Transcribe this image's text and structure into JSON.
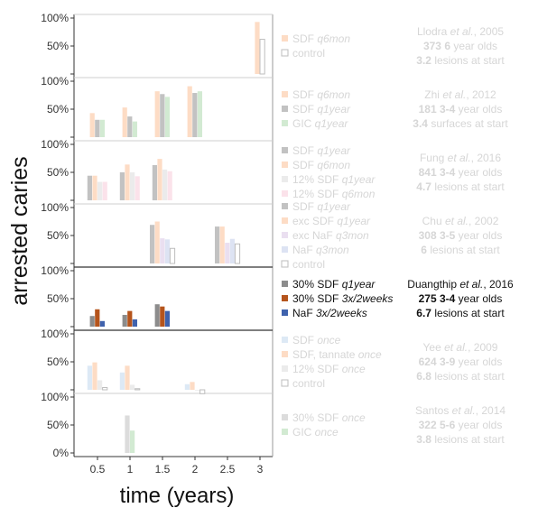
{
  "chart_data": {
    "type": "bar",
    "xlabel": "time (years)",
    "ylabel": "arrested caries",
    "x_ticks": [
      "0.5",
      "1",
      "1.5",
      "2",
      "2.5",
      "3"
    ],
    "y_tick_labels": [
      "0%",
      "50%",
      "100%"
    ],
    "ylim": [
      0,
      100
    ],
    "panels": [
      {
        "study_author": "Llodra",
        "study_year": ", 2005",
        "children_n": "373",
        "children_age": "6",
        "children_suffix": " year olds",
        "lesions_n": "3.2",
        "lesions_suffix": " lesions at start",
        "faded": true,
        "series": [
          {
            "name_main": "SDF",
            "name_freq": "q6mon",
            "color": "#fddcc5",
            "outline": false,
            "values": [
              {
                "x": 3,
                "y": 93
              }
            ]
          },
          {
            "name_main": "control",
            "name_freq": "",
            "color": "#ffffff",
            "outline": true,
            "values": [
              {
                "x": 3,
                "y": 62
              }
            ]
          }
        ]
      },
      {
        "study_author": "Zhi",
        "study_year": ", 2012",
        "children_n": "181",
        "children_age": "3-4",
        "children_suffix": " year olds",
        "lesions_n": "3.4",
        "lesions_suffix": " surfaces at start",
        "faded": true,
        "series": [
          {
            "name_main": "SDF",
            "name_freq": "q6mon",
            "color": "#fddcc5",
            "outline": false,
            "values": [
              {
                "x": 0.5,
                "y": 43
              },
              {
                "x": 1,
                "y": 53
              },
              {
                "x": 1.5,
                "y": 82
              },
              {
                "x": 2,
                "y": 91
              }
            ]
          },
          {
            "name_main": "SDF",
            "name_freq": "q1year",
            "color": "#c2c2c2",
            "outline": false,
            "values": [
              {
                "x": 0.5,
                "y": 31
              },
              {
                "x": 1,
                "y": 37
              },
              {
                "x": 1.5,
                "y": 77
              },
              {
                "x": 2,
                "y": 79
              }
            ]
          },
          {
            "name_main": "GIC",
            "name_freq": "q1year",
            "color": "#d2ead2",
            "outline": false,
            "values": [
              {
                "x": 0.5,
                "y": 31
              },
              {
                "x": 1,
                "y": 28
              },
              {
                "x": 1.5,
                "y": 72
              },
              {
                "x": 2,
                "y": 82
              }
            ]
          }
        ]
      },
      {
        "study_author": "Fung",
        "study_year": ", 2016",
        "children_n": "841",
        "children_age": "3-4",
        "children_suffix": " year olds",
        "lesions_n": "4.7",
        "lesions_suffix": " lesions at start",
        "faded": true,
        "series": [
          {
            "name_main": "SDF",
            "name_freq": "q1year",
            "color": "#c2c2c2",
            "outline": false,
            "values": [
              {
                "x": 0.5,
                "y": 44
              },
              {
                "x": 1,
                "y": 50
              },
              {
                "x": 1.5,
                "y": 63
              }
            ]
          },
          {
            "name_main": "SDF",
            "name_freq": "q6mon",
            "color": "#fddcc5",
            "outline": false,
            "values": [
              {
                "x": 0.5,
                "y": 44
              },
              {
                "x": 1,
                "y": 64
              },
              {
                "x": 1.5,
                "y": 74
              }
            ]
          },
          {
            "name_main": "12% SDF",
            "name_freq": "q1year",
            "color": "#ebebeb",
            "outline": false,
            "values": [
              {
                "x": 0.5,
                "y": 33
              },
              {
                "x": 1,
                "y": 50
              },
              {
                "x": 1.5,
                "y": 55
              }
            ]
          },
          {
            "name_main": "12% SDF",
            "name_freq": "q6mon",
            "color": "#fbe2ea",
            "outline": false,
            "values": [
              {
                "x": 0.5,
                "y": 33
              },
              {
                "x": 1,
                "y": 43
              },
              {
                "x": 1.5,
                "y": 52
              }
            ]
          }
        ]
      },
      {
        "study_author": "Chu",
        "study_year": ", 2002",
        "children_n": "308",
        "children_age": "3-5",
        "children_suffix": " year olds",
        "lesions_n": "6",
        "lesions_suffix": " lesions at start",
        "faded": true,
        "series": [
          {
            "name_main": "SDF",
            "name_freq": "q1year",
            "color": "#c2c2c2",
            "outline": false,
            "values": [
              {
                "x": 1.5,
                "y": 69
              },
              {
                "x": 2.5,
                "y": 66
              }
            ]
          },
          {
            "name_main": "exc SDF",
            "name_freq": "q1year",
            "color": "#fddcc5",
            "outline": false,
            "values": [
              {
                "x": 1.5,
                "y": 75
              },
              {
                "x": 2.5,
                "y": 66
              }
            ]
          },
          {
            "name_main": "exc NaF",
            "name_freq": "q3mon",
            "color": "#eadff0",
            "outline": false,
            "values": [
              {
                "x": 1.5,
                "y": 45
              },
              {
                "x": 2.5,
                "y": 37
              }
            ]
          },
          {
            "name_main": "NaF",
            "name_freq": "q3mon",
            "color": "#dde3f3",
            "outline": false,
            "values": [
              {
                "x": 1.5,
                "y": 43
              },
              {
                "x": 2.5,
                "y": 44
              }
            ]
          },
          {
            "name_main": "control",
            "name_freq": "",
            "color": "#ffffff",
            "outline": true,
            "values": [
              {
                "x": 1.5,
                "y": 27
              },
              {
                "x": 2.5,
                "y": 35
              }
            ]
          }
        ]
      },
      {
        "study_author": "Duangthip",
        "study_year": ", 2016",
        "children_n": "275",
        "children_age": "3-4",
        "children_suffix": " year olds",
        "lesions_n": "6.7",
        "lesions_suffix": " lesions at start",
        "faded": false,
        "series": [
          {
            "name_main": "30% SDF",
            "name_freq": "q1year",
            "color": "#8c8c8c",
            "outline": false,
            "values": [
              {
                "x": 0.5,
                "y": 19
              },
              {
                "x": 1,
                "y": 21
              },
              {
                "x": 1.5,
                "y": 40
              }
            ]
          },
          {
            "name_main": "30% SDF",
            "name_freq": "3x/2weeks",
            "color": "#b5541c",
            "outline": false,
            "values": [
              {
                "x": 0.5,
                "y": 31
              },
              {
                "x": 1,
                "y": 28
              },
              {
                "x": 1.5,
                "y": 36
              }
            ]
          },
          {
            "name_main": "NaF",
            "name_freq": "3x/2weeks",
            "color": "#3f62ad",
            "outline": false,
            "values": [
              {
                "x": 0.5,
                "y": 10
              },
              {
                "x": 1,
                "y": 13
              },
              {
                "x": 1.5,
                "y": 28
              }
            ]
          }
        ]
      },
      {
        "study_author": "Yee",
        "study_year": ", 2009",
        "children_n": "624",
        "children_age": "3-9",
        "children_suffix": " year olds",
        "lesions_n": "6.8",
        "lesions_suffix": " lesions at start",
        "faded": true,
        "series": [
          {
            "name_main": "SDF",
            "name_freq": "once",
            "color": "#dde9f5",
            "outline": false,
            "values": [
              {
                "x": 0.5,
                "y": 43
              },
              {
                "x": 1,
                "y": 31
              },
              {
                "x": 2,
                "y": 10
              }
            ]
          },
          {
            "name_main": "SDF, tannate",
            "name_freq": "once",
            "color": "#fddcc5",
            "outline": false,
            "values": [
              {
                "x": 0.5,
                "y": 49
              },
              {
                "x": 1,
                "y": 43
              },
              {
                "x": 2,
                "y": 14
              }
            ]
          },
          {
            "name_main": "12% SDF",
            "name_freq": "once",
            "color": "#ebebeb",
            "outline": false,
            "values": [
              {
                "x": 0.5,
                "y": 17
              },
              {
                "x": 1,
                "y": 9
              },
              {
                "x": 2,
                "y": 0
              }
            ]
          },
          {
            "name_main": "control",
            "name_freq": "",
            "color": "#ffffff",
            "outline": true,
            "values": [
              {
                "x": 0.5,
                "y": 4
              },
              {
                "x": 1,
                "y": 2
              },
              {
                "x": 2,
                "y": -7
              }
            ]
          }
        ]
      },
      {
        "study_author": "Santos",
        "study_year": ", 2014",
        "children_n": "322",
        "children_age": "5-6",
        "children_suffix": " year olds",
        "lesions_n": "3.8",
        "lesions_suffix": " lesions at start",
        "faded": true,
        "series": [
          {
            "name_main": "30% SDF",
            "name_freq": "once",
            "color": "#dcdcdc",
            "outline": false,
            "values": [
              {
                "x": 1,
                "y": 67
              }
            ]
          },
          {
            "name_main": "GIC",
            "name_freq": "once",
            "color": "#d2ead2",
            "outline": false,
            "values": [
              {
                "x": 1,
                "y": 40
              }
            ]
          }
        ]
      }
    ]
  }
}
